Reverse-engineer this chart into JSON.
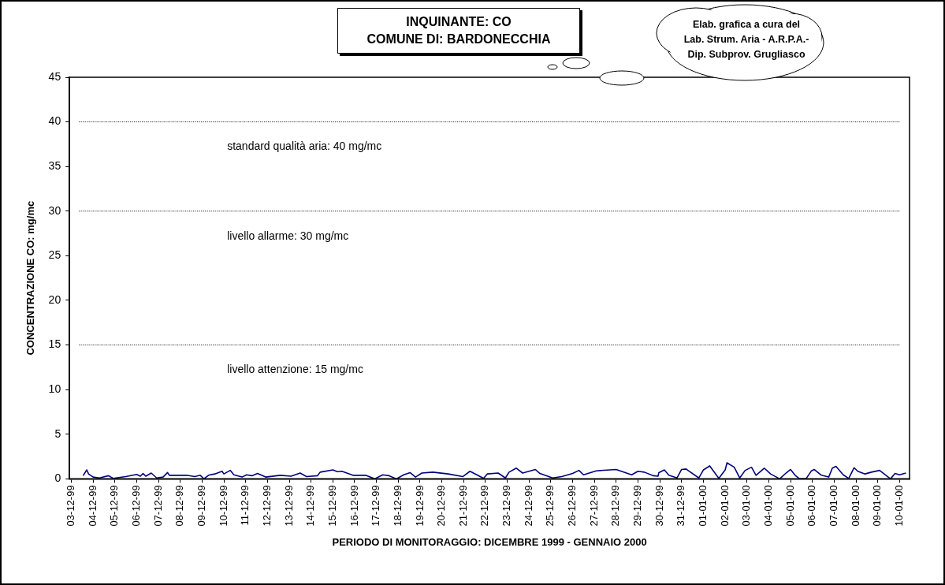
{
  "chart_data": {
    "type": "line",
    "title": "INQUINANTE: CO",
    "subtitle": "COMUNE DI: BARDONECCHIA",
    "xlabel": "PERIODO DI MONITORAGGIO: DICEMBRE 1999 - GENNAIO 2000",
    "ylabel": "CONCENTRAZIONE CO: mg/mc",
    "annotations": [
      "Elab. grafica a cura del\nLab. Strum. Aria - A.R.P.A.-\nDip. Subprov. Grugliasco"
    ],
    "x": [
      "1999-12-03T13:00",
      "1999-12-03T17:00",
      "1999-12-03T19:00",
      "1999-12-04T00:00",
      "1999-12-04T07:00",
      "1999-12-04T17:00",
      "1999-12-04T22:00",
      "1999-12-05T12:00",
      "1999-12-06T00:00",
      "1999-12-06T04:00",
      "1999-12-06T07:00",
      "1999-12-06T10:00",
      "1999-12-06T16:00",
      "1999-12-06T22:00",
      "1999-12-07T05:00",
      "1999-12-07T10:00",
      "1999-12-07T12:00",
      "1999-12-08T07:00",
      "1999-12-08T16:00",
      "1999-12-08T22:00",
      "1999-12-09T02:00",
      "1999-12-09T07:00",
      "1999-12-09T14:00",
      "1999-12-09T22:00",
      "1999-12-10T00:00",
      "1999-12-10T07:00",
      "1999-12-10T11:00",
      "1999-12-10T20:00",
      "1999-12-11T01:00",
      "1999-12-11T07:00",
      "1999-12-11T13:00",
      "1999-12-11T22:00",
      "1999-12-12T14:00",
      "1999-12-13T02:00",
      "1999-12-13T12:00",
      "1999-12-13T19:00",
      "1999-12-14T07:00",
      "1999-12-14T10:00",
      "1999-12-15T00:00",
      "1999-12-15T05:00",
      "1999-12-15T10:00",
      "1999-12-15T22:00",
      "1999-12-16T12:00",
      "1999-12-16T22:00",
      "1999-12-17T07:00",
      "1999-12-17T14:00",
      "1999-12-17T22:00",
      "1999-12-18T06:00",
      "1999-12-18T13:00",
      "1999-12-18T19:00",
      "1999-12-19T02:00",
      "1999-12-19T14:00",
      "1999-12-20T07:00",
      "1999-12-20T23:00",
      "1999-12-21T07:00",
      "1999-12-21T22:00",
      "1999-12-22T02:00",
      "1999-12-22T14:00",
      "1999-12-22T22:00",
      "1999-12-23T02:00",
      "1999-12-23T10:00",
      "1999-12-23T17:00",
      "1999-12-24T07:00",
      "1999-12-24T12:00",
      "1999-12-25T02:00",
      "1999-12-25T12:00",
      "1999-12-26T00:00",
      "1999-12-26T07:00",
      "1999-12-26T12:00",
      "1999-12-27T02:00",
      "1999-12-28T00:00",
      "1999-12-28T17:00",
      "1999-12-29T00:00",
      "1999-12-29T07:00",
      "1999-12-29T17:00",
      "1999-12-29T22:00",
      "1999-12-29T23:00",
      "1999-12-30T05:00",
      "1999-12-30T10:00",
      "1999-12-30T19:00",
      "1999-12-31T00:00",
      "1999-12-31T05:00",
      "1999-12-31T07:00",
      "1999-12-31T19:00",
      "2000-01-01T00:00",
      "2000-01-01T07:00",
      "2000-01-01T17:00",
      "2000-01-02T00:00",
      "2000-01-02T02:00",
      "2000-01-02T10:00",
      "2000-01-02T16:00",
      "2000-01-02T22:00",
      "2000-01-03T05:00",
      "2000-01-03T10:00",
      "2000-01-03T19:00",
      "2000-01-04T02:00",
      "2000-01-04T12:00",
      "2000-01-04T19:00",
      "2000-01-05T00:00",
      "2000-01-05T05:00",
      "2000-01-05T10:00",
      "2000-01-05T17:00",
      "2000-01-05T23:00",
      "2000-01-06T02:00",
      "2000-01-06T10:00",
      "2000-01-06T18:00",
      "2000-01-06T22:00",
      "2000-01-07T02:00",
      "2000-01-07T10:00",
      "2000-01-07T16:00",
      "2000-01-07T22:00",
      "2000-01-08T02:00",
      "2000-01-08T10:00",
      "2000-01-08T17:00",
      "2000-01-09T02:00",
      "2000-01-09T14:00",
      "2000-01-09T19:00",
      "2000-01-10T00:00",
      "2000-01-10T07:00"
    ],
    "series": [
      {
        "color": "#000080",
        "values": [
          0.35,
          1.0,
          0.55,
          0.2,
          0.1,
          0.35,
          0.05,
          0.25,
          0.5,
          0.3,
          0.6,
          0.3,
          0.65,
          0.1,
          0.2,
          0.7,
          0.4,
          0.4,
          0.25,
          0.4,
          0,
          0.4,
          0.55,
          0.85,
          0.55,
          0.95,
          0.45,
          0.2,
          0.45,
          0.35,
          0.6,
          0.2,
          0.4,
          0.3,
          0.65,
          0.25,
          0.35,
          0.75,
          1.0,
          0.8,
          0.85,
          0.4,
          0.4,
          0,
          0.45,
          0.35,
          0,
          0.45,
          0.7,
          0.2,
          0.65,
          0.75,
          0.55,
          0.25,
          0.85,
          0.05,
          0.55,
          0.65,
          0.1,
          0.75,
          1.2,
          0.65,
          1.05,
          0.6,
          0.1,
          0.25,
          0.6,
          0.95,
          0.45,
          0.9,
          1.05,
          0.45,
          0.85,
          0.75,
          0.35,
          0.3,
          0.7,
          1.0,
          0.4,
          0.1,
          1.05,
          1.1,
          0.95,
          0.1,
          1.0,
          1.45,
          0.05,
          1.0,
          1.8,
          1.3,
          0.1,
          0.95,
          1.3,
          0.4,
          1.2,
          0.55,
          0,
          0.65,
          1.05,
          0.4,
          0,
          0,
          0.9,
          1.05,
          0.4,
          0.2,
          1.2,
          1.4,
          0.45,
          0.05,
          1.25,
          0.85,
          0.55,
          0.75,
          0.95,
          0,
          0.6,
          0.45,
          0.65
        ]
      }
    ],
    "xlim": [
      "1999-12-02T22:00",
      "2000-01-10T11:00"
    ],
    "xticks": [
      {
        "value": "1999-12-03",
        "label": "03-12-99"
      },
      {
        "value": "1999-12-04",
        "label": "04-12-99"
      },
      {
        "value": "1999-12-05",
        "label": "05-12-99"
      },
      {
        "value": "1999-12-06",
        "label": "06-12-99"
      },
      {
        "value": "1999-12-07",
        "label": "07-12-99"
      },
      {
        "value": "1999-12-08",
        "label": "08-12-99"
      },
      {
        "value": "1999-12-09",
        "label": "09-12-99"
      },
      {
        "value": "1999-12-10",
        "label": "10-12-99"
      },
      {
        "value": "1999-12-11",
        "label": "11-12-99"
      },
      {
        "value": "1999-12-12",
        "label": "12-12-99"
      },
      {
        "value": "1999-12-13",
        "label": "13-12-99"
      },
      {
        "value": "1999-12-14",
        "label": "14-12-99"
      },
      {
        "value": "1999-12-15",
        "label": "15-12-99"
      },
      {
        "value": "1999-12-16",
        "label": "16-12-99"
      },
      {
        "value": "1999-12-17",
        "label": "17-12-99"
      },
      {
        "value": "1999-12-18",
        "label": "18-12-99"
      },
      {
        "value": "1999-12-19",
        "label": "19-12-99"
      },
      {
        "value": "1999-12-20",
        "label": "20-12-99"
      },
      {
        "value": "1999-12-21",
        "label": "21-12-99"
      },
      {
        "value": "1999-12-22",
        "label": "22-12-99"
      },
      {
        "value": "1999-12-23",
        "label": "23-12-99"
      },
      {
        "value": "1999-12-24",
        "label": "24-12-99"
      },
      {
        "value": "1999-12-25",
        "label": "25-12-99"
      },
      {
        "value": "1999-12-26",
        "label": "26-12-99"
      },
      {
        "value": "1999-12-27",
        "label": "27-12-99"
      },
      {
        "value": "1999-12-28",
        "label": "28-12-99"
      },
      {
        "value": "1999-12-29",
        "label": "29-12-99"
      },
      {
        "value": "1999-12-30",
        "label": "30-12-99"
      },
      {
        "value": "1999-12-31",
        "label": "31-12-99"
      },
      {
        "value": "2000-01-01",
        "label": "01-01-00"
      },
      {
        "value": "2000-01-02",
        "label": "02-01-00"
      },
      {
        "value": "2000-01-03",
        "label": "03-01-00"
      },
      {
        "value": "2000-01-04",
        "label": "04-01-00"
      },
      {
        "value": "2000-01-05",
        "label": "05-01-00"
      },
      {
        "value": "2000-01-06",
        "label": "06-01-00"
      },
      {
        "value": "2000-01-07",
        "label": "07-01-00"
      },
      {
        "value": "2000-01-08",
        "label": "08-01-00"
      },
      {
        "value": "2000-01-09",
        "label": "09-01-00"
      },
      {
        "value": "2000-01-10",
        "label": "10-01-00"
      }
    ],
    "ylim": [
      0,
      45
    ],
    "yticks": [
      0,
      5,
      10,
      15,
      20,
      25,
      30,
      35,
      40,
      45
    ],
    "ref_lines": [
      {
        "axis": "y",
        "value": 40,
        "label": "standard qualità aria: 40 mg/mc",
        "line_style": "dotted",
        "color": "#000000"
      },
      {
        "axis": "y",
        "value": 30,
        "label": "livello allarme: 30 mg/mc",
        "line_style": "dotted",
        "color": "#000000"
      },
      {
        "axis": "y",
        "value": 15,
        "label": "livello attenzione: 15 mg/mc",
        "line_style": "dotted",
        "color": "#000000"
      }
    ],
    "grid": false,
    "legend": false,
    "marker": "none",
    "line_style": "solid"
  }
}
